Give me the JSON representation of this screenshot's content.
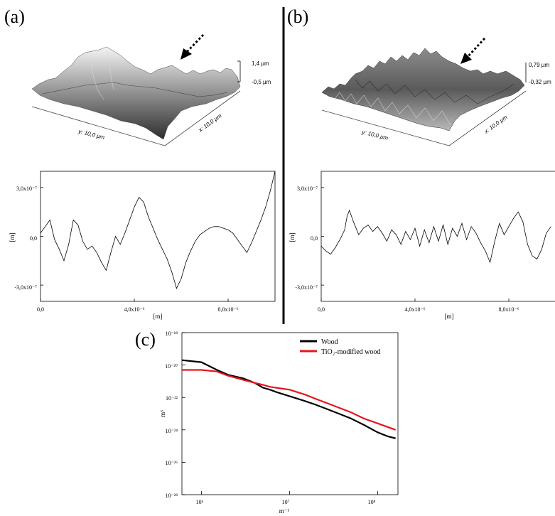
{
  "panels": {
    "a": {
      "letter": "(a)",
      "surface": {
        "x_axis_label": "x: 10,0 µm",
        "y_axis_label": "y: 10,0 µm",
        "scale_max": "1,4 µm",
        "scale_min": "-0,5 µm"
      }
    },
    "b": {
      "letter": "(b)",
      "surface": {
        "x_axis_label": "x: 10,0 µm",
        "y_axis_label": "y: 10,0 µm",
        "scale_max": "0,79 µm",
        "scale_min": "-0,32 µm"
      }
    },
    "c": {
      "letter": "(c)"
    }
  },
  "colors": {
    "wood": "#000000",
    "tio2": "#e8141b",
    "surface_light": "#f2f2f2",
    "surface_dark": "#3a3a3a"
  },
  "chart_data": [
    {
      "type": "line",
      "xlabel": "[m]",
      "ylabel": "[m]",
      "xlim": [
        0,
        1e-05
      ],
      "ylim": [
        -4e-07,
        4e-07
      ],
      "x_ticks": [
        "0,0",
        "4,0x10⁻⁶",
        "8,0x10⁻⁶"
      ],
      "y_ticks": [
        "3,0x10⁻⁷",
        "0,0",
        "-3,0x10⁻⁷"
      ],
      "series": [
        {
          "x": [
            0.0,
            0.2,
            0.4,
            0.6,
            0.8,
            1.0,
            1.2,
            1.4,
            1.6,
            1.8,
            2.0,
            2.2,
            2.4,
            2.6,
            2.8,
            3.0,
            3.2,
            3.4,
            3.6,
            3.8,
            4.0,
            4.2,
            4.4,
            4.6,
            4.8,
            5.0,
            5.2,
            5.4,
            5.6,
            5.8,
            6.0,
            6.2,
            6.4,
            6.6,
            6.8,
            7.0,
            7.2,
            7.4,
            7.6,
            7.8,
            8.0,
            8.2,
            8.4,
            8.6,
            8.8,
            9.0,
            9.2,
            9.4,
            9.6,
            9.8,
            10.0
          ],
          "y": [
            0.2,
            0.6,
            1.0,
            -0.2,
            -0.8,
            -1.5,
            -0.5,
            1.0,
            0.7,
            -0.3,
            -0.8,
            -0.6,
            -1.0,
            -1.6,
            -2.1,
            -1.0,
            0.0,
            -0.5,
            0.2,
            1.0,
            1.8,
            2.4,
            2.1,
            1.2,
            0.5,
            -0.2,
            -0.8,
            -1.4,
            -2.2,
            -3.2,
            -2.6,
            -1.6,
            -0.9,
            -0.3,
            0.1,
            0.3,
            0.5,
            0.6,
            0.6,
            0.5,
            0.4,
            0.2,
            -0.2,
            -0.6,
            -1.0,
            -0.4,
            0.3,
            1.0,
            1.8,
            2.8,
            4.0
          ]
        }
      ]
    },
    {
      "type": "line",
      "xlabel": "[m]",
      "ylabel": "[m]",
      "xlim": [
        0,
        1e-05
      ],
      "ylim": [
        -4e-07,
        4e-07
      ],
      "x_ticks": [
        "0,0",
        "4,0x10⁻⁶",
        "8,0x10⁻⁶"
      ],
      "y_ticks": [
        "3,0x10⁻⁷",
        "0,0",
        "-3,0x10⁻⁷"
      ],
      "series": [
        {
          "x": [
            0.0,
            0.2,
            0.4,
            0.6,
            0.8,
            1.0,
            1.1,
            1.2,
            1.4,
            1.6,
            1.8,
            2.0,
            2.2,
            2.4,
            2.6,
            2.8,
            3.0,
            3.2,
            3.4,
            3.6,
            3.8,
            4.0,
            4.2,
            4.4,
            4.6,
            4.8,
            5.0,
            5.2,
            5.4,
            5.6,
            5.8,
            6.0,
            6.2,
            6.4,
            6.6,
            6.8,
            7.0,
            7.2,
            7.4,
            7.6,
            7.8,
            8.0,
            8.2,
            8.4,
            8.6,
            8.8,
            9.0,
            9.2,
            9.4,
            9.6,
            9.8
          ],
          "y": [
            -0.6,
            -0.9,
            -1.1,
            -0.7,
            -0.2,
            0.4,
            1.2,
            1.6,
            0.8,
            0.1,
            0.5,
            0.7,
            0.3,
            0.6,
            0.2,
            -0.3,
            0.4,
            0.1,
            -0.5,
            0.3,
            -0.2,
            0.5,
            -0.6,
            0.4,
            -0.4,
            0.6,
            -0.3,
            0.7,
            -0.5,
            0.5,
            0.0,
            0.8,
            -0.2,
            0.6,
            0.2,
            -0.4,
            -0.9,
            -1.6,
            -0.3,
            0.8,
            0.1,
            0.6,
            1.1,
            1.5,
            0.9,
            -0.5,
            -1.2,
            -1.4,
            -0.8,
            0.2,
            0.6
          ]
        }
      ]
    },
    {
      "type": "line",
      "xlabel": "m⁻¹",
      "ylabel": "m³",
      "x_log": true,
      "y_log": true,
      "xlim": [
        600000.0,
        170000000.0
      ],
      "ylim": [
        1e-28,
        1e-18
      ],
      "x_ticks": [
        "10⁶",
        "10⁷",
        "10⁸"
      ],
      "y_ticks": [
        "10⁻¹⁸",
        "10⁻²⁰",
        "10⁻²²",
        "10⁻²⁴",
        "10⁻²⁶",
        "10⁻²⁸"
      ],
      "legend_position": "top-right",
      "series": [
        {
          "name": "Wood",
          "color": "#000000",
          "x": [
            600000.0,
            1000000.0,
            1500000.0,
            2000000.0,
            3000000.0,
            4000000.0,
            5000000.0,
            6000000.0,
            7000000.0,
            10000000.0,
            15000000.0,
            20000000.0,
            30000000.0,
            50000000.0,
            70000000.0,
            100000000.0,
            130000000.0,
            160000000.0
          ],
          "y": [
            2e-20,
            1.5e-20,
            5e-21,
            2.5e-21,
            1.5e-21,
            8e-22,
            4e-22,
            3e-22,
            2.2e-22,
            1.2e-22,
            6e-23,
            3.5e-23,
            1.5e-23,
            5e-24,
            2e-24,
            7e-25,
            4e-25,
            3e-25
          ]
        },
        {
          "name": "TiO₂-modified wood",
          "color": "#e8141b",
          "x": [
            600000.0,
            1000000.0,
            1500000.0,
            2000000.0,
            3000000.0,
            4000000.0,
            5000000.0,
            6000000.0,
            7000000.0,
            10000000.0,
            15000000.0,
            20000000.0,
            30000000.0,
            50000000.0,
            70000000.0,
            100000000.0,
            130000000.0,
            160000000.0
          ],
          "y": [
            5e-21,
            5e-21,
            4e-21,
            2.2e-21,
            1.2e-21,
            8e-22,
            6e-22,
            4.5e-22,
            4e-22,
            3e-22,
            1.5e-22,
            8e-23,
            3.5e-23,
            1.2e-23,
            5e-24,
            2.5e-24,
            1.5e-24,
            1e-24
          ]
        }
      ]
    }
  ]
}
